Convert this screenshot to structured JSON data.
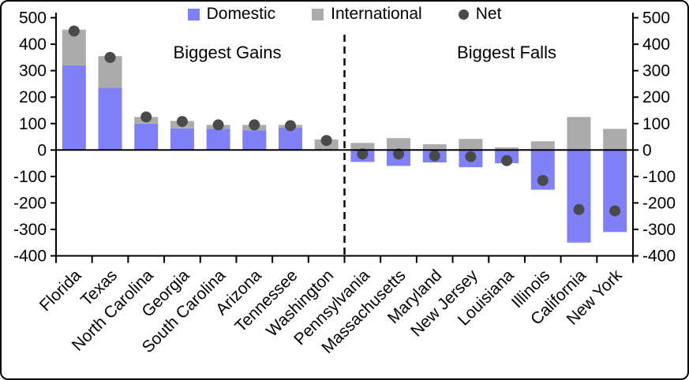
{
  "chart_data": {
    "type": "bar",
    "stacked": true,
    "grid": false,
    "legend_position": "top",
    "ylim": [
      -400,
      500
    ],
    "ytick_step": 100,
    "categories": [
      "Florida",
      "Texas",
      "North Carolina",
      "Georgia",
      "South Carolina",
      "Arizona",
      "Tennessee",
      "Washington",
      "Pennsylvania",
      "Massachusetts",
      "Maryland",
      "New Jersey",
      "Louisiana",
      "Illinois",
      "California",
      "New York"
    ],
    "series": [
      {
        "name": "Domestic",
        "color": "#8080F8",
        "values": [
          320,
          235,
          100,
          82,
          80,
          75,
          85,
          0,
          -45,
          -60,
          -47,
          -65,
          -50,
          -150,
          -350,
          -310
        ]
      },
      {
        "name": "International",
        "color": "#ABABAB",
        "values": [
          135,
          120,
          25,
          28,
          15,
          20,
          10,
          40,
          27,
          45,
          22,
          42,
          10,
          33,
          125,
          80
        ]
      }
    ],
    "dot_series": {
      "name": "Net",
      "color": "#4A4A4A",
      "values": [
        450,
        350,
        125,
        108,
        95,
        95,
        92,
        36,
        -15,
        -15,
        -22,
        -25,
        -40,
        -115,
        -225,
        -230
      ]
    },
    "divider_after_category_index": 8,
    "annotations": [
      {
        "text": "Biggest Gains",
        "section": "left"
      },
      {
        "text": "Biggest Falls",
        "section": "right"
      }
    ]
  },
  "legend": {
    "items": [
      {
        "label": "Domestic",
        "color": "#8080F8",
        "shape": "square"
      },
      {
        "label": "International",
        "color": "#ABABAB",
        "shape": "square"
      },
      {
        "label": "Net",
        "color": "#4A4A4A",
        "shape": "circle"
      }
    ]
  },
  "sections": {
    "gains_label": "Biggest Gains",
    "falls_label": "Biggest Falls"
  },
  "colors": {
    "domestic": "#8080F8",
    "international": "#ABABAB",
    "net_dot": "#4A4A4A",
    "axis": "#000000",
    "background": "#FFFFFF"
  }
}
